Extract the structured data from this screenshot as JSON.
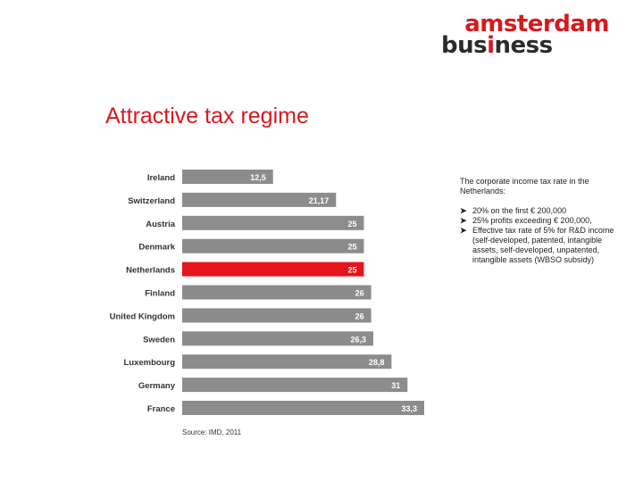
{
  "logo": {
    "line1": "amsterdam",
    "line2_a": "bus",
    "line2_b": "i",
    "line2_c": "ness"
  },
  "title": "Attractive tax regime",
  "note": {
    "intro": "The corporate income tax rate in the Netherlands:",
    "bullets": [
      "20% on the first € 200,000",
      "25% profits exceeding € 200,000,",
      "Effective tax rate of 5% for R&D income (self-developed, patented, intangible assets, self-developed, unpatented, intangible assets (WBSO subsidy)"
    ]
  },
  "source": "Source: IMD, 2011",
  "colors": {
    "bar": "#8c8c8c",
    "highlight": "#e8141b",
    "title": "#d7191f"
  },
  "chart_data": {
    "type": "bar",
    "orientation": "horizontal",
    "categories": [
      "Ireland",
      "Switzerland",
      "Austria",
      "Denmark",
      "Netherlands",
      "Finland",
      "United Kingdom",
      "Sweden",
      "Luxembourg",
      "Germany",
      "France"
    ],
    "values": [
      12.5,
      21.17,
      25,
      25,
      25,
      26,
      26,
      26.3,
      28.8,
      31,
      33.3
    ],
    "labels": [
      "12,5",
      "21,17",
      "25",
      "25",
      "25",
      "26",
      "26",
      "26,3",
      "28,8",
      "31",
      "33,3"
    ],
    "highlight_index": 4,
    "xlim": [
      0,
      33.3
    ]
  }
}
